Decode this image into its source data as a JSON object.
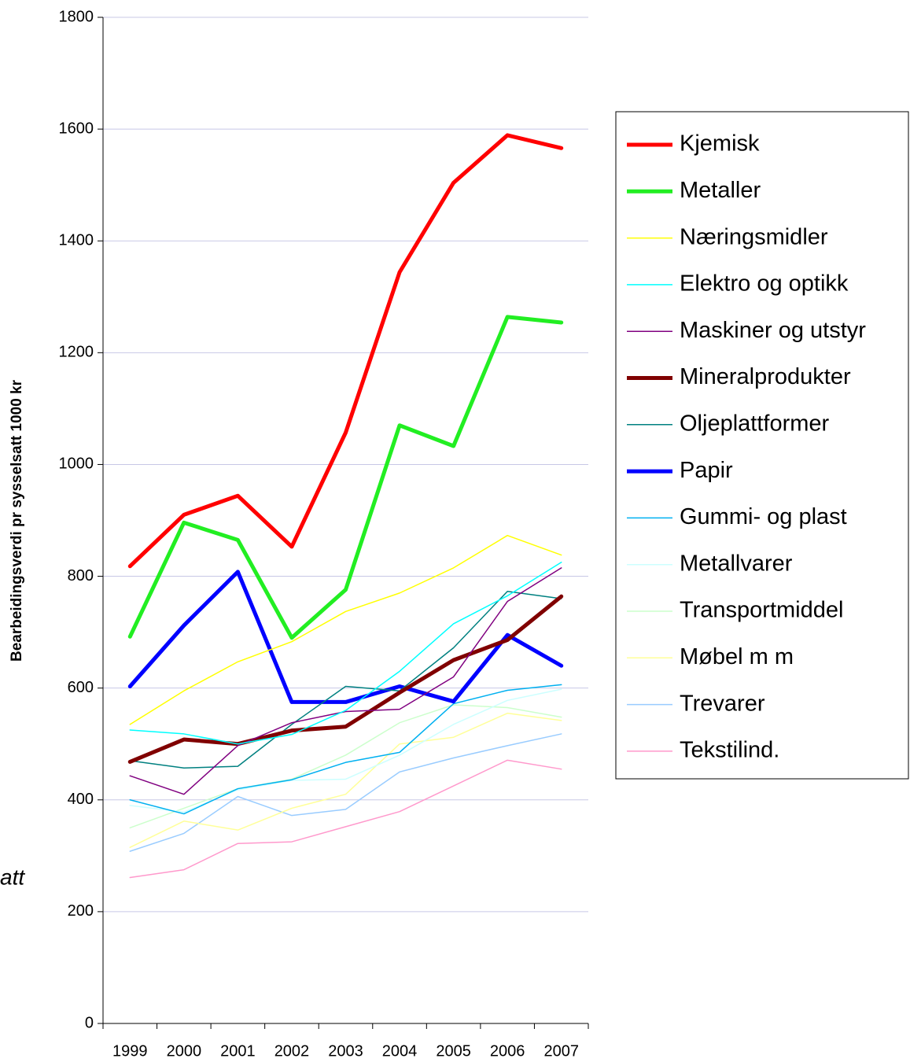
{
  "chart_data": {
    "type": "line",
    "y_label": "Bearbeidingsverdi pr sysselsatt 1000 kr",
    "annotation": "att",
    "categories": [
      "1999",
      "2000",
      "2001",
      "2002",
      "2003",
      "2004",
      "2005",
      "2006",
      "2007"
    ],
    "ylim": [
      0,
      1800
    ],
    "yticks": [
      0,
      200,
      400,
      600,
      800,
      1000,
      1200,
      1400,
      1600,
      1800
    ],
    "grid": true,
    "legend": "right",
    "series": [
      {
        "name": "Kjemisk",
        "color": "#ff0000",
        "line_width": 5,
        "values": [
          818,
          910,
          944,
          853,
          1057,
          1344,
          1504,
          1589,
          1566
        ]
      },
      {
        "name": "Metaller",
        "color": "#22ee22",
        "line_width": 5,
        "values": [
          692,
          896,
          865,
          690,
          776,
          1070,
          1033,
          1264,
          1254
        ]
      },
      {
        "name": "Næringsmidler",
        "color": "#ffff00",
        "line_width": 1.5,
        "values": [
          535,
          595,
          647,
          683,
          737,
          770,
          815,
          873,
          838
        ]
      },
      {
        "name": "Elektro og optikk",
        "color": "#00ffff",
        "line_width": 1.5,
        "values": [
          525,
          518,
          500,
          517,
          560,
          630,
          715,
          765,
          825
        ]
      },
      {
        "name": "Maskiner og utstyr",
        "color": "#800080",
        "line_width": 1.5,
        "values": [
          443,
          410,
          497,
          538,
          558,
          562,
          620,
          755,
          815
        ]
      },
      {
        "name": "Mineralprodukter",
        "color": "#800000",
        "line_width": 5,
        "values": [
          468,
          508,
          500,
          524,
          531,
          592,
          650,
          686,
          764
        ]
      },
      {
        "name": "Oljeplattformer",
        "color": "#008080",
        "line_width": 1.5,
        "values": [
          470,
          457,
          460,
          535,
          603,
          595,
          672,
          773,
          760
        ]
      },
      {
        "name": "Papir",
        "color": "#0000ff",
        "line_width": 5,
        "values": [
          603,
          712,
          808,
          575,
          575,
          603,
          576,
          695,
          640
        ]
      },
      {
        "name": "Gummi- og plast",
        "color": "#00b0f0",
        "line_width": 1.5,
        "values": [
          400,
          375,
          420,
          436,
          467,
          485,
          572,
          596,
          606
        ]
      },
      {
        "name": "Metallvarer",
        "color": "#ccffff",
        "line_width": 1.5,
        "values": [
          390,
          378,
          418,
          435,
          437,
          480,
          535,
          578,
          598
        ]
      },
      {
        "name": "Transportmiddel",
        "color": "#ccffcc",
        "line_width": 1.5,
        "values": [
          350,
          385,
          420,
          437,
          480,
          538,
          570,
          565,
          548
        ]
      },
      {
        "name": "Møbel m m",
        "color": "#ffff99",
        "line_width": 1.5,
        "values": [
          315,
          362,
          346,
          385,
          410,
          500,
          512,
          555,
          542
        ]
      },
      {
        "name": "Trevarer",
        "color": "#99ccff",
        "line_width": 1.5,
        "values": [
          308,
          340,
          406,
          372,
          383,
          450,
          475,
          497,
          518
        ]
      },
      {
        "name": "Tekstilind.",
        "color": "#ff99cc",
        "line_width": 1.5,
        "values": [
          261,
          275,
          322,
          325,
          352,
          379,
          425,
          471,
          455
        ]
      }
    ]
  }
}
